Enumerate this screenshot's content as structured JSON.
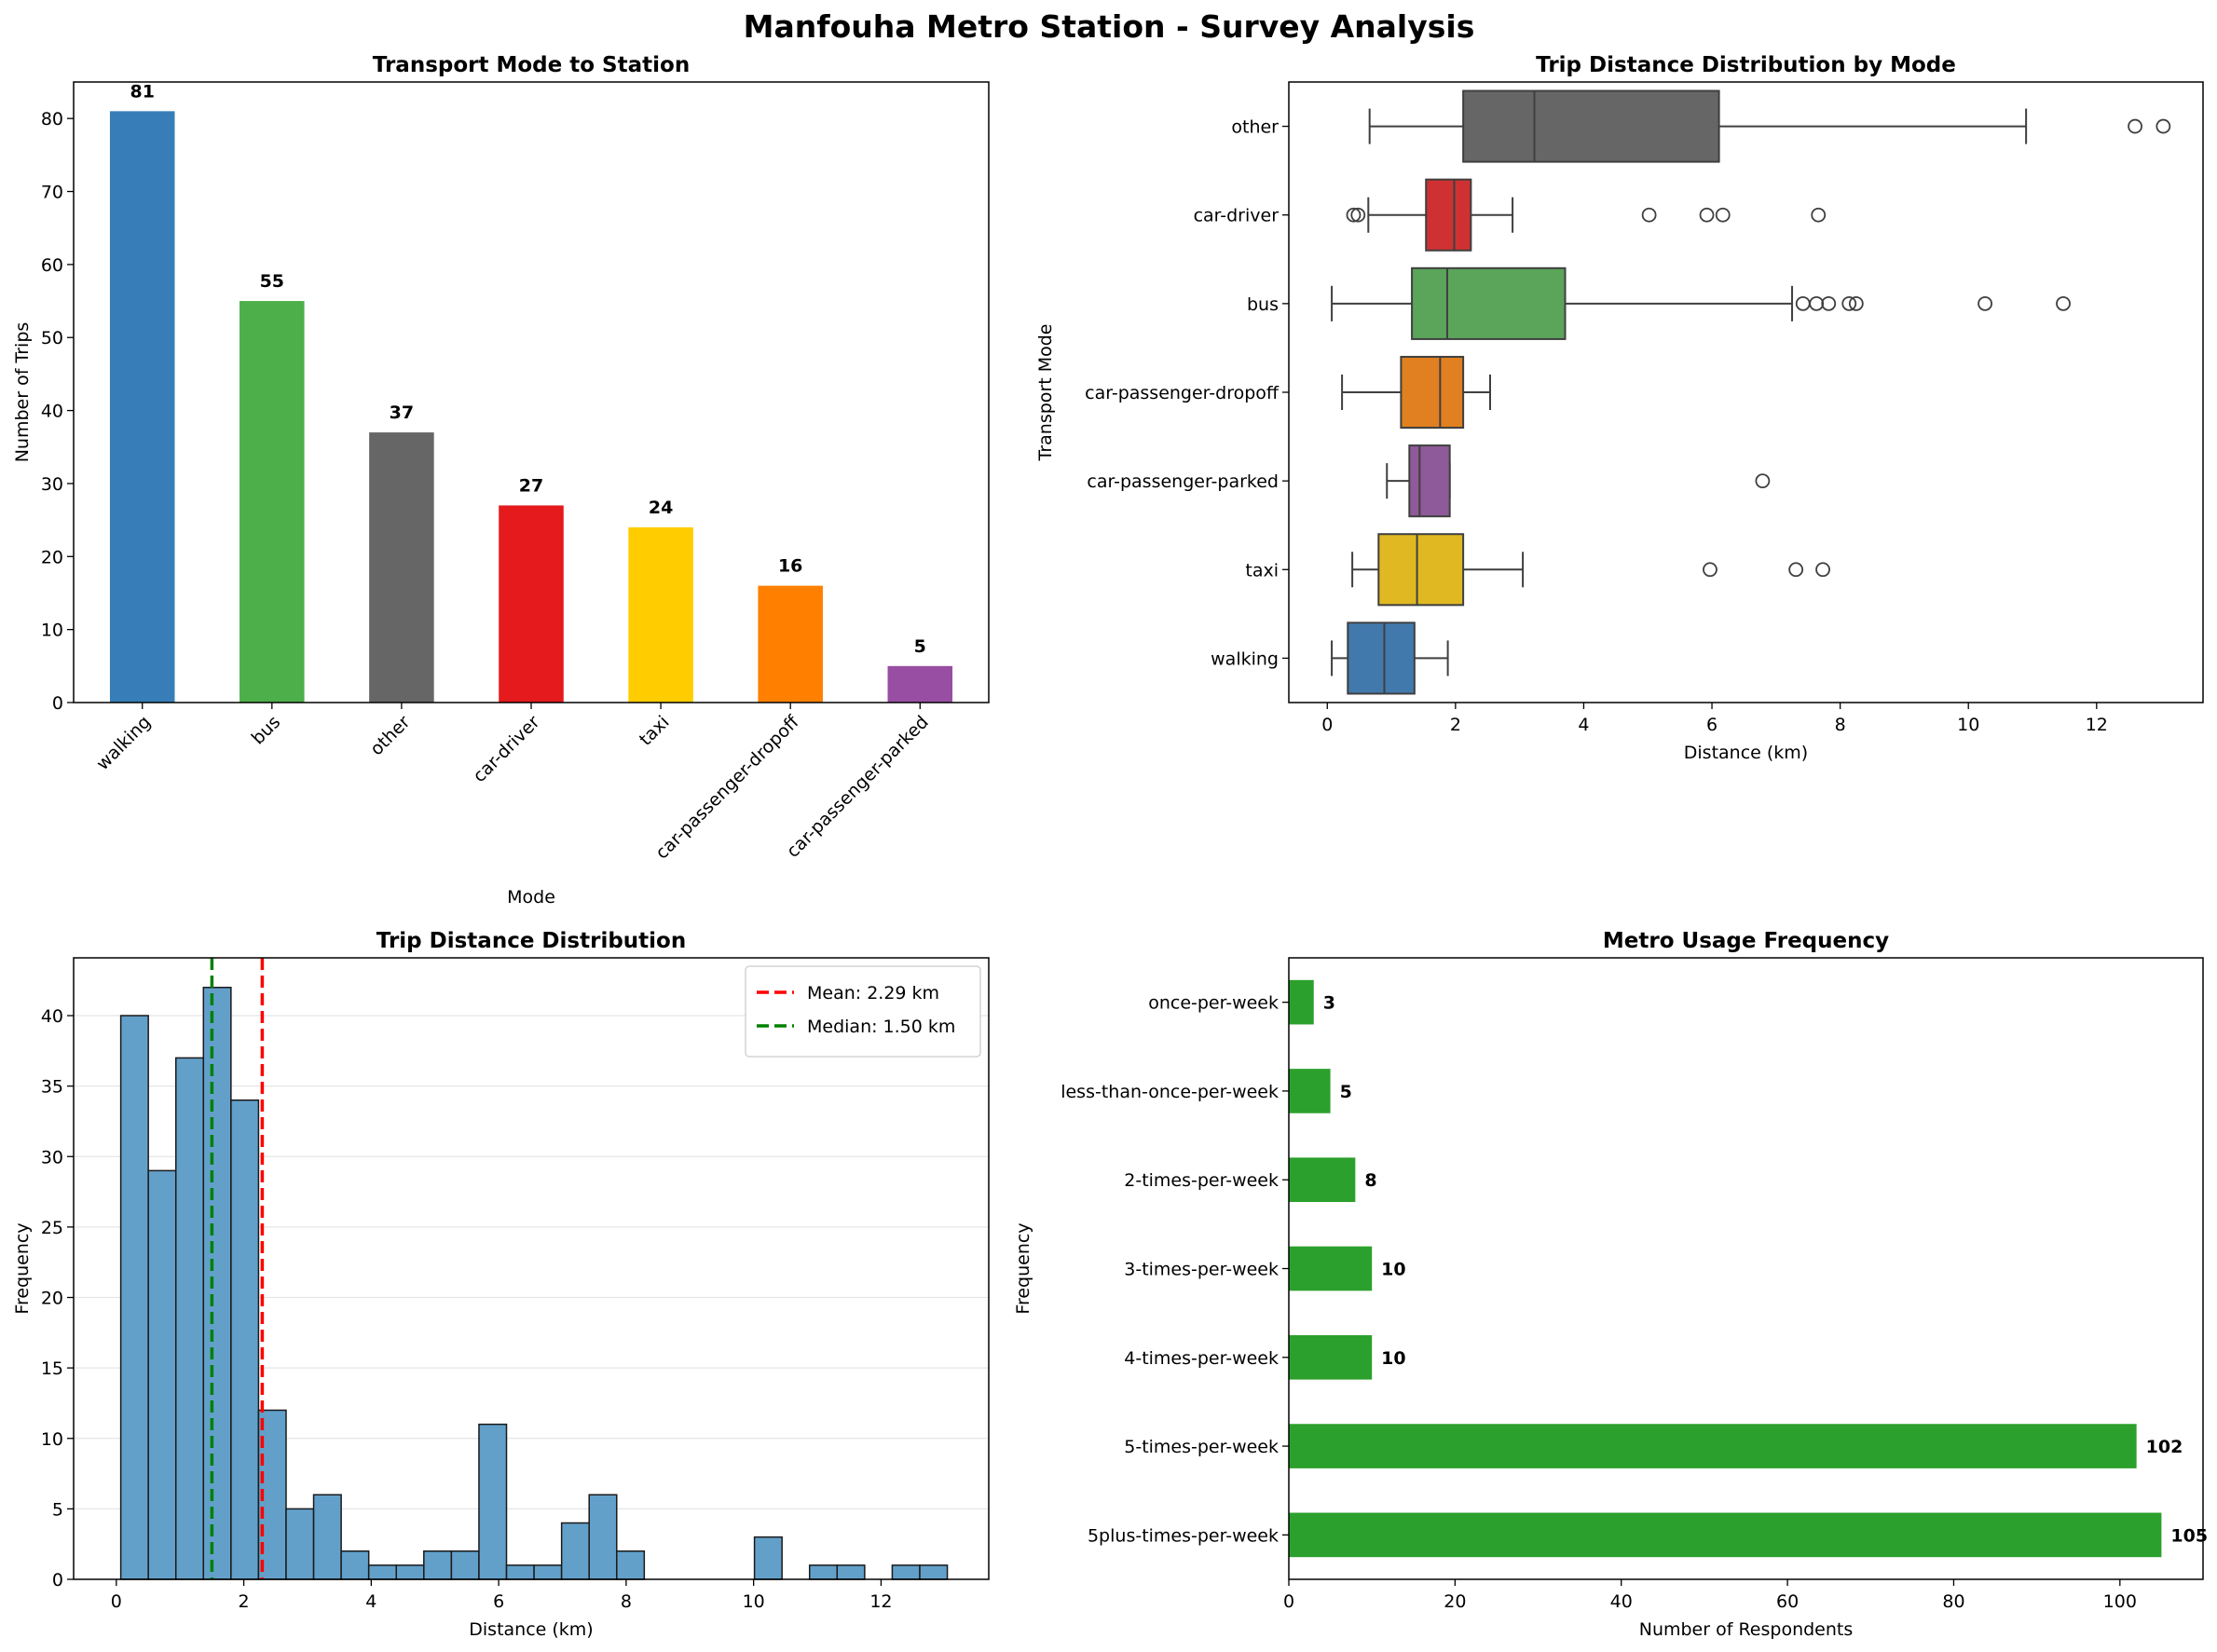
{
  "title": "Manfouha Metro Station - Survey Analysis",
  "chart_data": [
    {
      "type": "bar",
      "title": "Transport Mode to Station",
      "xlabel": "Mode",
      "ylabel": "Number of Trips",
      "categories": [
        "walking",
        "bus",
        "other",
        "car-driver",
        "taxi",
        "car-passenger-dropoff",
        "car-passenger-parked"
      ],
      "values": [
        81,
        55,
        37,
        27,
        24,
        16,
        5
      ],
      "colors": [
        "#377eb8",
        "#4daf4a",
        "#666666",
        "#e41a1c",
        "#ffcc00",
        "#ff7f00",
        "#984ea3"
      ],
      "ylim": [
        0,
        85
      ],
      "yticks": [
        0,
        10,
        20,
        30,
        40,
        50,
        60,
        70,
        80
      ],
      "data_labels": true,
      "grid": false
    },
    {
      "type": "box",
      "title": "Trip Distance Distribution by Mode",
      "xlabel": "Distance (km)",
      "ylabel": "Transport Mode",
      "xlim": [
        -0.6,
        13.66
      ],
      "xticks": [
        0,
        2,
        4,
        6,
        8,
        10,
        12
      ],
      "grid": false,
      "series": [
        {
          "name": "other",
          "whisker_low": 0.66,
          "q1": 2.12,
          "median": 3.23,
          "q3": 6.11,
          "whisker_high": 10.9,
          "outliers": [
            12.6,
            13.04
          ],
          "color": "#666666"
        },
        {
          "name": "car-driver",
          "whisker_low": 0.64,
          "q1": 1.54,
          "median": 1.98,
          "q3": 2.24,
          "whisker_high": 2.89,
          "outliers": [
            0.41,
            0.48,
            5.02,
            5.92,
            6.17,
            7.66
          ],
          "color": "#cf3133"
        },
        {
          "name": "bus",
          "whisker_low": 0.07,
          "q1": 1.32,
          "median": 1.87,
          "q3": 3.71,
          "whisker_high": 7.25,
          "outliers": [
            7.42,
            7.63,
            7.82,
            8.14,
            8.25,
            10.26,
            11.48
          ],
          "color": "#5ba55a"
        },
        {
          "name": "car-passenger-dropoff",
          "whisker_low": 0.23,
          "q1": 1.15,
          "median": 1.76,
          "q3": 2.12,
          "whisker_high": 2.54,
          "outliers": [],
          "color": "#e08020"
        },
        {
          "name": "car-passenger-parked",
          "whisker_low": 0.93,
          "q1": 1.28,
          "median": 1.44,
          "q3": 1.91,
          "whisker_high": 1.91,
          "outliers": [
            6.79
          ],
          "color": "#8f5a9a"
        },
        {
          "name": "taxi",
          "whisker_low": 0.39,
          "q1": 0.8,
          "median": 1.4,
          "q3": 2.12,
          "whisker_high": 3.05,
          "outliers": [
            5.97,
            7.31,
            7.73
          ],
          "color": "#e0b922"
        },
        {
          "name": "walking",
          "whisker_low": 0.07,
          "q1": 0.32,
          "median": 0.89,
          "q3": 1.36,
          "whisker_high": 1.88,
          "outliers": [],
          "color": "#4279ac"
        }
      ]
    },
    {
      "type": "histogram",
      "title": "Trip Distance Distribution",
      "xlabel": "Distance (km)",
      "ylabel": "Frequency",
      "bin_start": 0.07,
      "bin_end": 13.04,
      "counts": [
        40,
        29,
        37,
        42,
        34,
        12,
        5,
        6,
        2,
        1,
        1,
        2,
        2,
        11,
        1,
        1,
        4,
        6,
        2,
        0,
        0,
        0,
        0,
        3,
        0,
        1,
        1,
        0,
        1,
        1
      ],
      "color": "#62a0ca",
      "xlim": [
        -0.67,
        13.69
      ],
      "ylim": [
        0,
        44.1
      ],
      "xticks": [
        0,
        2,
        4,
        6,
        8,
        10,
        12
      ],
      "yticks": [
        0,
        5,
        10,
        15,
        20,
        25,
        30,
        35,
        40
      ],
      "grid": "y",
      "lines": [
        {
          "label": "Mean: 2.29 km",
          "value": 2.29,
          "color": "#ff0000"
        },
        {
          "label": "Median: 1.50 km",
          "value": 1.5,
          "color": "#008000"
        }
      ],
      "legend": "top-right"
    },
    {
      "type": "barh",
      "title": "Metro Usage Frequency",
      "xlabel": "Number of Respondents",
      "ylabel": "Frequency",
      "categories": [
        "once-per-week",
        "less-than-once-per-week",
        "2-times-per-week",
        "3-times-per-week",
        "4-times-per-week",
        "5-times-per-week",
        "5plus-times-per-week"
      ],
      "values": [
        3,
        5,
        8,
        10,
        10,
        102,
        105
      ],
      "color": "#2ca02c",
      "xlim": [
        0,
        110
      ],
      "xticks": [
        0,
        20,
        40,
        60,
        80,
        100
      ],
      "data_labels": true,
      "grid": false
    }
  ]
}
